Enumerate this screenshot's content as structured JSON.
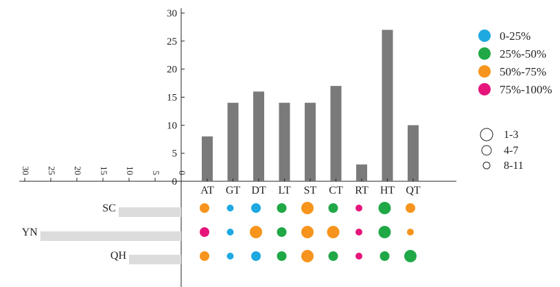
{
  "chart_data": {
    "type": "bar",
    "categories": [
      "AT",
      "GT",
      "DT",
      "LT",
      "ST",
      "CT",
      "RT",
      "HT",
      "QT"
    ],
    "values": [
      8,
      14,
      16,
      14,
      14,
      17,
      3,
      27,
      10
    ],
    "ylim": [
      0,
      30
    ],
    "yticks": [
      "0",
      "5",
      "10",
      "15",
      "20",
      "25",
      "30"
    ],
    "grid": false,
    "regions": [
      "SC",
      "YN",
      "QH"
    ],
    "region_values": [
      12,
      27,
      10
    ],
    "region_ticks": [
      "30",
      "25",
      "20",
      "15",
      "10",
      "5",
      "0"
    ],
    "color_legend": [
      {
        "label": "0-25%",
        "color": "#1fa9e1"
      },
      {
        "label": "25%-50%",
        "color": "#20a847"
      },
      {
        "label": "50%-75%",
        "color": "#f7941d"
      },
      {
        "label": "75%-100%",
        "color": "#e6157b"
      }
    ],
    "size_legend": [
      "1-3",
      "4-7",
      "8-11"
    ],
    "bar_color": "#7a7a7a",
    "region_bar_color": "#dcdcdc",
    "dot_matrix": [
      [
        {
          "cat": 2,
          "size": 1
        },
        {
          "cat": 0,
          "size": 2
        },
        {
          "cat": 0,
          "size": 1
        },
        {
          "cat": 1,
          "size": 1
        },
        {
          "cat": 2,
          "size": 0
        },
        {
          "cat": 1,
          "size": 1
        },
        {
          "cat": 3,
          "size": 2
        },
        {
          "cat": 1,
          "size": 0
        },
        {
          "cat": 2,
          "size": 1
        }
      ],
      [
        {
          "cat": 3,
          "size": 1
        },
        {
          "cat": 0,
          "size": 2
        },
        {
          "cat": 2,
          "size": 0
        },
        {
          "cat": 1,
          "size": 1
        },
        {
          "cat": 2,
          "size": 0
        },
        {
          "cat": 2,
          "size": 0
        },
        {
          "cat": 3,
          "size": 2
        },
        {
          "cat": 1,
          "size": 0
        },
        {
          "cat": 2,
          "size": 2
        }
      ],
      [
        {
          "cat": 2,
          "size": 1
        },
        {
          "cat": 0,
          "size": 2
        },
        {
          "cat": 0,
          "size": 1
        },
        {
          "cat": 1,
          "size": 1
        },
        {
          "cat": 2,
          "size": 0
        },
        {
          "cat": 1,
          "size": 1
        },
        {
          "cat": 3,
          "size": 2
        },
        {
          "cat": 1,
          "size": 1
        },
        {
          "cat": 1,
          "size": 0
        }
      ]
    ]
  }
}
